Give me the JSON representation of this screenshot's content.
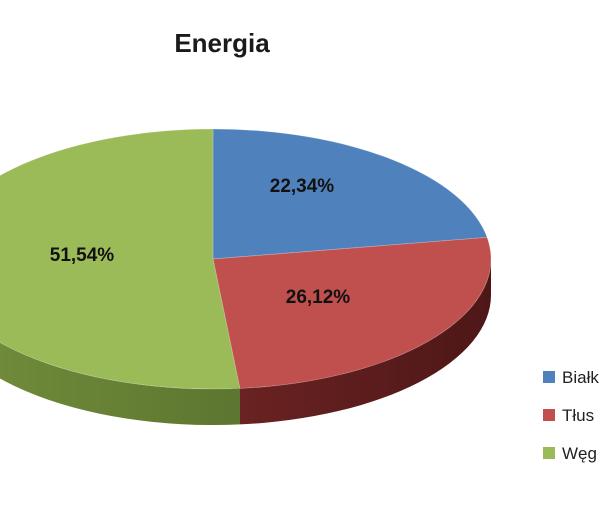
{
  "chart_data": {
    "type": "pie",
    "title": "Energia",
    "labels": [
      "Białk",
      "Tłus",
      "Węg"
    ],
    "values": [
      22.34,
      26.12,
      51.54
    ],
    "data_labels": [
      "22,34%",
      "26,12%",
      "51,54%"
    ],
    "colors": [
      "#4f81bd",
      "#c0504d",
      "#9bbb59"
    ],
    "side_colors": [
      "#2c4d75",
      "#6b2424",
      "#6f8a3a"
    ],
    "legend_position": "right",
    "style": "3d"
  }
}
